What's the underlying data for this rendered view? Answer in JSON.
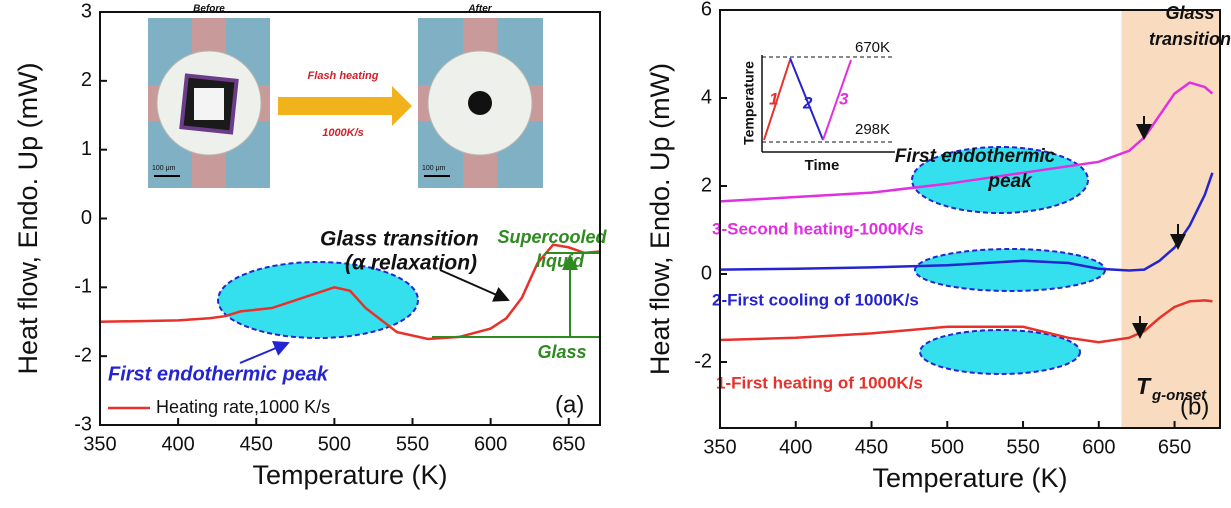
{
  "chart_data": [
    {
      "type": "line",
      "panel_label": "(a)",
      "xlabel": "Temperature (K)",
      "ylabel": "Heat flow, Endo. Up (mW)",
      "xlim": [
        350,
        670
      ],
      "xticks": [
        350,
        400,
        450,
        500,
        550,
        600,
        650
      ],
      "ylim": [
        -3,
        3
      ],
      "yticks": [
        -3,
        -2,
        -1,
        0,
        1,
        2,
        3
      ],
      "x": [
        350,
        400,
        420,
        430,
        440,
        460,
        480,
        500,
        510,
        520,
        540,
        560,
        580,
        600,
        610,
        620,
        630,
        640,
        650,
        660,
        670
      ],
      "series": [
        {
          "name": "Heating rate,1000 K/s",
          "color": "#e8312a",
          "values": [
            -1.5,
            -1.48,
            -1.45,
            -1.42,
            -1.35,
            -1.3,
            -1.15,
            -1.0,
            -1.05,
            -1.3,
            -1.65,
            -1.75,
            -1.72,
            -1.6,
            -1.45,
            -1.15,
            -0.65,
            -0.38,
            -0.42,
            -0.5,
            -0.48
          ]
        }
      ],
      "annotations": {
        "glass_transition": "Glass transition",
        "alpha_relaxation": "(α relaxation)",
        "supercooled": "Supercooled",
        "liquid": "liquid",
        "glass": "Glass",
        "first_peak": "First endothermic peak"
      },
      "inset": {
        "before": "Before",
        "after": "After",
        "flash_heating": "Flash heating",
        "rate": "1000K/s",
        "scale_bar": "100 μm"
      }
    },
    {
      "type": "line",
      "panel_label": "(b)",
      "xlabel": "Temperature (K)",
      "ylabel": "Heat flow, Endo. Up (mW)",
      "xlim": [
        350,
        680
      ],
      "xticks": [
        350,
        400,
        450,
        500,
        550,
        600,
        650
      ],
      "ylim": [
        -3.5,
        6
      ],
      "yticks": [
        -2,
        0,
        2,
        4,
        6
      ],
      "shaded_xrange": [
        615,
        680
      ],
      "shaded_color": "#f9dcc0",
      "x": [
        350,
        400,
        450,
        500,
        550,
        580,
        600,
        620,
        630,
        640,
        650,
        660,
        670,
        675
      ],
      "series": [
        {
          "name": "3-Second heating-1000K/s",
          "color": "#e030e0",
          "values": [
            1.65,
            1.75,
            1.85,
            2.05,
            2.3,
            2.45,
            2.55,
            2.8,
            3.1,
            3.6,
            4.1,
            4.35,
            4.25,
            4.1
          ]
        },
        {
          "name": "2-First cooling of 1000K/s",
          "color": "#2424d0",
          "values": [
            0.1,
            0.12,
            0.15,
            0.2,
            0.3,
            0.25,
            0.12,
            0.08,
            0.1,
            0.3,
            0.6,
            1.1,
            1.8,
            2.3
          ]
        },
        {
          "name": "1-First heating of 1000K/s",
          "color": "#e8312a",
          "values": [
            -1.5,
            -1.45,
            -1.35,
            -1.2,
            -1.2,
            -1.45,
            -1.55,
            -1.45,
            -1.3,
            -1.0,
            -0.75,
            -0.62,
            -0.6,
            -0.62
          ]
        }
      ],
      "annotations": {
        "glass": "Glass",
        "transition": "transition",
        "first_endothermic": "First endothermic",
        "peak": "peak",
        "t": "T",
        "t_sub": "g-onset"
      },
      "inset": {
        "y_label": "Temperature",
        "x_label": "Time",
        "high": "670K",
        "low": "298K",
        "step1": "1",
        "step2": "2",
        "step3": "3"
      }
    }
  ]
}
